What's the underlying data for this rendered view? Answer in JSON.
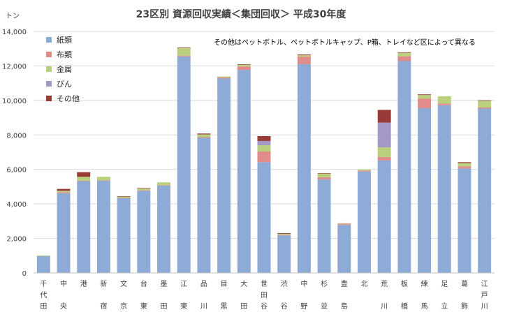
{
  "chart_data": {
    "type": "bar",
    "stacked": true,
    "title": "23区別 資源回収実績＜集団回収＞ 平成30年度",
    "ylabel": "トン",
    "annotation": "その他はペットボトル、ペットボトルキャップ、P箱、トレイなど区によって異なる",
    "ylim": [
      0,
      14000
    ],
    "yticks": [
      "0",
      "2,000",
      "4,000",
      "6,000",
      "8,000",
      "10,000",
      "12,000",
      "14,000"
    ],
    "ytick_values": [
      0,
      2000,
      4000,
      6000,
      8000,
      10000,
      12000,
      14000
    ],
    "grid": true,
    "legend_position": "top-left",
    "categories": [
      "千代田",
      "中央",
      "港",
      "新宿",
      "文京",
      "台東",
      "墨田",
      "江東",
      "品川",
      "目黒",
      "大田",
      "世田谷",
      "渋谷",
      "中野",
      "杉並",
      "豊島",
      "北",
      "荒川",
      "板橋",
      "練馬",
      "足立",
      "葛飾",
      "江戸川"
    ],
    "category_lines": [
      [
        "千",
        "代",
        "田"
      ],
      [
        "中",
        "",
        "央"
      ],
      [
        "港"
      ],
      [
        "新",
        "",
        "宿"
      ],
      [
        "文",
        "",
        "京"
      ],
      [
        "台",
        "",
        "東"
      ],
      [
        "墨",
        "",
        "田"
      ],
      [
        "江",
        "",
        "東"
      ],
      [
        "品",
        "",
        "川"
      ],
      [
        "目",
        "",
        "黒"
      ],
      [
        "大",
        "",
        "田"
      ],
      [
        "世",
        "田",
        "谷"
      ],
      [
        "渋",
        "",
        "谷"
      ],
      [
        "中",
        "",
        "野"
      ],
      [
        "杉",
        "",
        "並"
      ],
      [
        "豊",
        "",
        "島"
      ],
      [
        "北"
      ],
      [
        "荒",
        "",
        "川"
      ],
      [
        "板",
        "",
        "橋"
      ],
      [
        "練",
        "",
        "馬"
      ],
      [
        "足",
        "",
        "立"
      ],
      [
        "葛",
        "",
        "飾"
      ],
      [
        "江",
        "戸",
        "川"
      ]
    ],
    "series": [
      {
        "name": "紙類",
        "color": "#8eaad6",
        "values": [
          980,
          4620,
          5320,
          5340,
          4330,
          4760,
          5060,
          12550,
          7830,
          11270,
          11770,
          6420,
          2180,
          12100,
          5420,
          2780,
          5880,
          6520,
          12280,
          9550,
          9720,
          6060,
          9530
        ]
      },
      {
        "name": "布類",
        "color": "#e08c8a",
        "values": [
          0,
          60,
          30,
          30,
          20,
          30,
          30,
          50,
          40,
          60,
          200,
          620,
          30,
          440,
          130,
          70,
          60,
          200,
          280,
          560,
          100,
          120,
          60
        ]
      },
      {
        "name": "金属",
        "color": "#b9d07d",
        "values": [
          30,
          80,
          220,
          200,
          60,
          100,
          160,
          440,
          160,
          60,
          100,
          360,
          60,
          80,
          210,
          30,
          60,
          560,
          200,
          200,
          420,
          190,
          390
        ]
      },
      {
        "name": "びん",
        "color": "#a598c6",
        "values": [
          0,
          0,
          0,
          0,
          0,
          0,
          0,
          0,
          0,
          0,
          0,
          250,
          0,
          0,
          0,
          0,
          0,
          1440,
          0,
          0,
          0,
          0,
          0
        ]
      },
      {
        "name": "その他",
        "color": "#983a35",
        "values": [
          0,
          110,
          270,
          0,
          30,
          30,
          0,
          30,
          50,
          0,
          30,
          280,
          40,
          40,
          30,
          0,
          0,
          730,
          30,
          40,
          0,
          50,
          30
        ]
      }
    ]
  }
}
